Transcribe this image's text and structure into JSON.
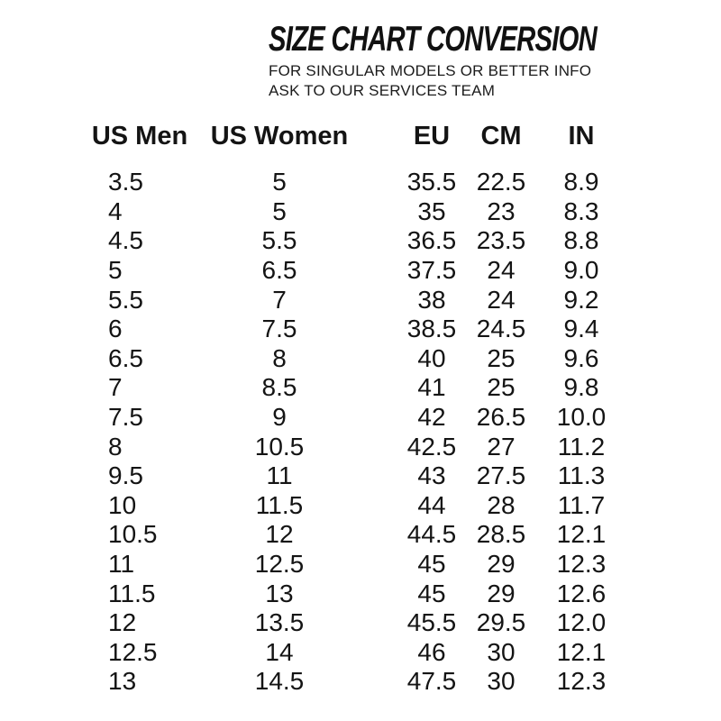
{
  "header": {
    "title": "SIZE CHART CONVERSION",
    "subtitle_line1": "FOR SINGULAR MODELS OR BETTER INFO",
    "subtitle_line2": "ASK TO OUR SERVICES TEAM"
  },
  "table": {
    "columns": [
      "US Men",
      "US Women",
      "EU",
      "CM",
      "IN"
    ],
    "rows": [
      [
        "3.5",
        "5",
        "35.5",
        "22.5",
        "8.9"
      ],
      [
        "4",
        "5",
        "35",
        "23",
        "8.3"
      ],
      [
        "4.5",
        "5.5",
        "36.5",
        "23.5",
        "8.8"
      ],
      [
        "5",
        "6.5",
        "37.5",
        "24",
        "9.0"
      ],
      [
        "5.5",
        "7",
        "38",
        "24",
        "9.2"
      ],
      [
        "6",
        "7.5",
        "38.5",
        "24.5",
        "9.4"
      ],
      [
        "6.5",
        "8",
        "40",
        "25",
        "9.6"
      ],
      [
        "7",
        "8.5",
        "41",
        "25",
        "9.8"
      ],
      [
        "7.5",
        "9",
        "42",
        "26.5",
        "10.0"
      ],
      [
        "8",
        "10.5",
        "42.5",
        "27",
        "11.2"
      ],
      [
        "9.5",
        "11",
        "43",
        "27.5",
        "11.3"
      ],
      [
        "10",
        "11.5",
        "44",
        "28",
        "11.7"
      ],
      [
        "10.5",
        "12",
        "44.5",
        "28.5",
        "12.1"
      ],
      [
        "11",
        "12.5",
        "45",
        "29",
        "12.3"
      ],
      [
        "11.5",
        "13",
        "45",
        "29",
        "12.6"
      ],
      [
        "12",
        "13.5",
        "45.5",
        "29.5",
        "12.0"
      ],
      [
        "12.5",
        "14",
        "46",
        "30",
        "12.1"
      ],
      [
        "13",
        "14.5",
        "47.5",
        "30",
        "12.3"
      ]
    ]
  },
  "colors": {
    "text": "#141414",
    "background": "#ffffff"
  }
}
